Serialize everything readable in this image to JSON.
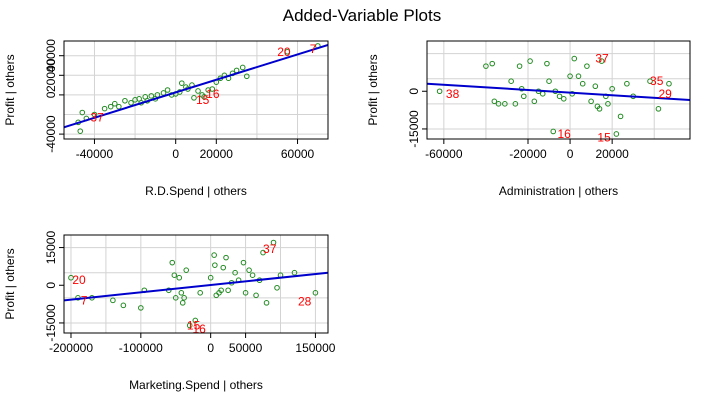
{
  "title": "Added-Variable Plots",
  "colors": {
    "points": "#228B22",
    "fit": "#0000CD",
    "labels": "#FF0000",
    "grid": "#D3D3D3",
    "axis": "#000000"
  },
  "chart_data": [
    {
      "type": "scatter",
      "xlabel": "R.D.Spend | others",
      "ylabel": "Profit  | others",
      "xlim": [
        -55000,
        75000
      ],
      "ylim": [
        -45000,
        55000
      ],
      "xticks": [
        "-40000",
        "0",
        "20000",
        "60000"
      ],
      "xtick_values": [
        -40000,
        0,
        20000,
        60000
      ],
      "yticks": [
        "-40000",
        "0",
        "20000",
        "40000"
      ],
      "ytick_values": [
        -40000,
        0,
        20000,
        40000
      ],
      "grid_x": [
        -40000,
        -20000,
        0,
        20000,
        40000,
        60000
      ],
      "grid_y": [
        -40000,
        -20000,
        0,
        20000,
        40000
      ],
      "points": [
        [
          -48000,
          -28000
        ],
        [
          -47000,
          -37000
        ],
        [
          -46000,
          -18000
        ],
        [
          -44000,
          -24000
        ],
        [
          -40000,
          -20000
        ],
        [
          -35000,
          -14000
        ],
        [
          -32000,
          -12000
        ],
        [
          -30000,
          -9000
        ],
        [
          -28000,
          -12000
        ],
        [
          -25000,
          -6000
        ],
        [
          -22000,
          -8000
        ],
        [
          -20000,
          -5000
        ],
        [
          -18000,
          -4000
        ],
        [
          -17000,
          -8000
        ],
        [
          -15000,
          -2000
        ],
        [
          -14000,
          -6000
        ],
        [
          -12000,
          -1000
        ],
        [
          -10000,
          -4000
        ],
        [
          -9000,
          0
        ],
        [
          -6000,
          2000
        ],
        [
          -4000,
          5000
        ],
        [
          -2000,
          0
        ],
        [
          0,
          1000
        ],
        [
          2000,
          3000
        ],
        [
          3000,
          12000
        ],
        [
          5000,
          8000
        ],
        [
          6000,
          6000
        ],
        [
          8000,
          10000
        ],
        [
          9000,
          -3000
        ],
        [
          11000,
          4000
        ],
        [
          13000,
          0
        ],
        [
          14000,
          -2000
        ],
        [
          16000,
          5000
        ],
        [
          18000,
          6000
        ],
        [
          20000,
          13000
        ],
        [
          22000,
          17000
        ],
        [
          24000,
          20000
        ],
        [
          26000,
          17000
        ],
        [
          28000,
          22000
        ],
        [
          30000,
          25000
        ],
        [
          33000,
          28000
        ],
        [
          35000,
          19000
        ],
        [
          55000,
          44000
        ],
        [
          70000,
          50000
        ]
      ],
      "fit": [
        [
          -55000,
          -33000
        ],
        [
          75000,
          51000
        ]
      ],
      "labels": [
        {
          "text": "20",
          "x": 50000,
          "y": 44000
        },
        {
          "text": "7",
          "x": 66000,
          "y": 47000
        },
        {
          "text": "37",
          "x": -42000,
          "y": -23000
        },
        {
          "text": "15",
          "x": 10000,
          "y": -5000
        },
        {
          "text": "16",
          "x": 15000,
          "y": 1000
        }
      ]
    },
    {
      "type": "scatter",
      "xlabel": "Administration | others",
      "ylabel": "Profit  | others",
      "xlim": [
        -68000,
        57000
      ],
      "ylim": [
        -19000,
        20000
      ],
      "xticks": [
        "-60000",
        "-20000",
        "0",
        "20000"
      ],
      "xtick_values": [
        -60000,
        -20000,
        0,
        20000
      ],
      "yticks": [
        "-15000",
        "0"
      ],
      "ytick_values": [
        -15000,
        0
      ],
      "grid_x": [
        -60000,
        -40000,
        -20000,
        0,
        20000,
        40000
      ],
      "grid_y": [
        -15000,
        -5000,
        5000,
        15000
      ],
      "points": [
        [
          -62000,
          0
        ],
        [
          -40000,
          10000
        ],
        [
          -37000,
          11000
        ],
        [
          -36000,
          -4000
        ],
        [
          -34000,
          -5000
        ],
        [
          -31000,
          -5000
        ],
        [
          -28000,
          4000
        ],
        [
          -26000,
          -5000
        ],
        [
          -24000,
          10000
        ],
        [
          -23000,
          1000
        ],
        [
          -22000,
          -2000
        ],
        [
          -19000,
          12000
        ],
        [
          -17000,
          -4000
        ],
        [
          -15000,
          0
        ],
        [
          -13000,
          -1000
        ],
        [
          -11000,
          11000
        ],
        [
          -10000,
          4000
        ],
        [
          -8000,
          -16000
        ],
        [
          -7000,
          0
        ],
        [
          -5000,
          -2000
        ],
        [
          -3000,
          -3000
        ],
        [
          0,
          6000
        ],
        [
          1000,
          -1000
        ],
        [
          2000,
          13000
        ],
        [
          4000,
          6000
        ],
        [
          6000,
          3000
        ],
        [
          8000,
          10000
        ],
        [
          10000,
          -4000
        ],
        [
          12000,
          2000
        ],
        [
          13000,
          -6000
        ],
        [
          14000,
          -7000
        ],
        [
          15000,
          12000
        ],
        [
          17000,
          -2000
        ],
        [
          18000,
          -5000
        ],
        [
          20000,
          1000
        ],
        [
          22000,
          -17000
        ],
        [
          24000,
          -10000
        ],
        [
          27000,
          3000
        ],
        [
          30000,
          -2000
        ],
        [
          38000,
          4000
        ],
        [
          42000,
          -7000
        ],
        [
          47000,
          3000
        ]
      ],
      "fit": [
        [
          -68000,
          3000
        ],
        [
          57000,
          -3500
        ]
      ],
      "labels": [
        {
          "text": "38",
          "x": -59000,
          "y": -1000
        },
        {
          "text": "37",
          "x": 12000,
          "y": 13000
        },
        {
          "text": "35",
          "x": 38000,
          "y": 4000
        },
        {
          "text": "29",
          "x": 42000,
          "y": -1000
        },
        {
          "text": "16",
          "x": -6000,
          "y": -17000
        },
        {
          "text": "15",
          "x": 13000,
          "y": -18500
        }
      ]
    },
    {
      "type": "scatter",
      "xlabel": "Marketing.Spend | others",
      "ylabel": "Profit  | others",
      "xlim": [
        -210000,
        168000
      ],
      "ylim": [
        -19000,
        20000
      ],
      "xticks": [
        "-200000",
        "-100000",
        "0",
        "50000",
        "150000"
      ],
      "xtick_values": [
        -200000,
        -100000,
        0,
        50000,
        150000
      ],
      "yticks": [
        "-15000",
        "0",
        "15000"
      ],
      "ytick_values": [
        -15000,
        0,
        15000
      ],
      "grid_x": [
        -200000,
        -150000,
        -100000,
        -50000,
        0,
        50000,
        100000,
        150000
      ],
      "grid_y": [
        -15000,
        -5000,
        5000,
        15000
      ],
      "points": [
        [
          -200000,
          3000
        ],
        [
          -190000,
          -5000
        ],
        [
          -170000,
          -5000
        ],
        [
          -140000,
          -6000
        ],
        [
          -125000,
          -8000
        ],
        [
          -100000,
          -9000
        ],
        [
          -95000,
          -2000
        ],
        [
          -60000,
          -2000
        ],
        [
          -55000,
          9000
        ],
        [
          -52000,
          4000
        ],
        [
          -50000,
          -5000
        ],
        [
          -45000,
          3000
        ],
        [
          -42000,
          -3000
        ],
        [
          -40000,
          -7000
        ],
        [
          -38000,
          -5000
        ],
        [
          -35000,
          6000
        ],
        [
          -30000,
          -16000
        ],
        [
          -22000,
          -14000
        ],
        [
          -15000,
          -3000
        ],
        [
          0,
          3000
        ],
        [
          5000,
          12000
        ],
        [
          6000,
          8000
        ],
        [
          8000,
          -4000
        ],
        [
          12000,
          -3000
        ],
        [
          15000,
          -2000
        ],
        [
          18000,
          7000
        ],
        [
          22000,
          11000
        ],
        [
          25000,
          -2000
        ],
        [
          30000,
          1000
        ],
        [
          35000,
          5000
        ],
        [
          40000,
          2000
        ],
        [
          47000,
          9000
        ],
        [
          50000,
          -3000
        ],
        [
          55000,
          6000
        ],
        [
          60000,
          4000
        ],
        [
          65000,
          -4000
        ],
        [
          70000,
          2000
        ],
        [
          75000,
          13000
        ],
        [
          80000,
          -7000
        ],
        [
          90000,
          17000
        ],
        [
          95000,
          -1000
        ],
        [
          100000,
          4000
        ],
        [
          120000,
          5000
        ],
        [
          150000,
          -3000
        ]
      ],
      "fit": [
        [
          -210000,
          -6000
        ],
        [
          168000,
          5000
        ]
      ],
      "labels": [
        {
          "text": "20",
          "x": -198000,
          "y": 2000
        },
        {
          "text": "7",
          "x": -186000,
          "y": -6000
        },
        {
          "text": "37",
          "x": 75000,
          "y": 14500
        },
        {
          "text": "28",
          "x": 125000,
          "y": -6500
        },
        {
          "text": "15",
          "x": -34000,
          "y": -16000
        },
        {
          "text": "16",
          "x": -26000,
          "y": -17500
        }
      ]
    }
  ]
}
